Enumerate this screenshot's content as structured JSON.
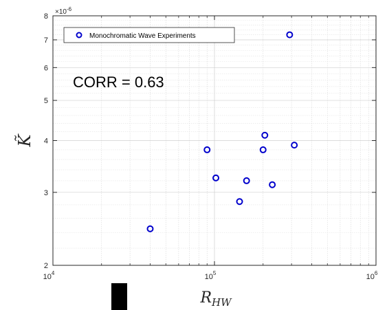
{
  "chart_data": {
    "type": "scatter",
    "xscale": "log",
    "yscale": "log",
    "xlim": [
      10000,
      1000000
    ],
    "ylim": [
      2e-06,
      8e-06
    ],
    "xticks": [
      {
        "value": 10000,
        "base": "10",
        "exp": "4"
      },
      {
        "value": 100000,
        "base": "10",
        "exp": "5"
      },
      {
        "value": 1000000,
        "base": "10",
        "exp": "6"
      }
    ],
    "yticks": [
      {
        "value": 2e-06,
        "label": "2"
      },
      {
        "value": 3e-06,
        "label": "3"
      },
      {
        "value": 4e-06,
        "label": "4"
      },
      {
        "value": 5e-06,
        "label": "5"
      },
      {
        "value": 6e-06,
        "label": "6"
      },
      {
        "value": 7e-06,
        "label": "7"
      },
      {
        "value": 8e-06,
        "label": "8"
      }
    ],
    "y_exponent": {
      "base": "×10",
      "exp": "-6"
    },
    "xlabel": {
      "main": "R",
      "sub": "HW"
    },
    "ylabel": "K̃",
    "grid": true,
    "legend_position": "top-left",
    "annotation": "CORR = 0.63",
    "marker_color": "#0000cc",
    "series": [
      {
        "name": "Monochromatic Wave Experiments",
        "points": [
          {
            "x": 40000,
            "y": 2.45e-06
          },
          {
            "x": 90000,
            "y": 3.8e-06
          },
          {
            "x": 102000,
            "y": 3.25e-06
          },
          {
            "x": 143000,
            "y": 2.85e-06
          },
          {
            "x": 158000,
            "y": 3.2e-06
          },
          {
            "x": 200000,
            "y": 3.8e-06
          },
          {
            "x": 205000,
            "y": 4.12e-06
          },
          {
            "x": 228000,
            "y": 3.13e-06
          },
          {
            "x": 292000,
            "y": 7.2e-06
          },
          {
            "x": 312000,
            "y": 3.9e-06
          }
        ]
      }
    ]
  }
}
